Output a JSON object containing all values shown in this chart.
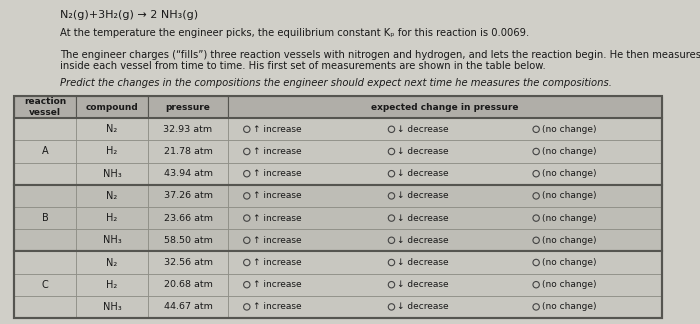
{
  "title_line": "N₂(g)+3H₂(g) → 2 NH₃(g)",
  "para1": "At the temperature the engineer picks, the equilibrium constant Kₚ for this reaction is 0.0069.",
  "para2": "The engineer charges (“fills”) three reaction vessels with nitrogen and hydrogen, and lets the reaction begin. He then measures the composition of the mixture inside each vessel from time to time. His first set of measurements are shown in the table below.",
  "para3": "Predict the changes in the compositions the engineer should expect next time he measures the compositions.",
  "col_headers": [
    "reaction\nvessel",
    "compound",
    "pressure",
    "expected change in pressure"
  ],
  "vessels": [
    "A",
    "B",
    "C"
  ],
  "compounds": [
    [
      "N₂",
      "H₂",
      "NH₃"
    ],
    [
      "N₂",
      "H₂",
      "NH₃"
    ],
    [
      "N₂",
      "H₂",
      "NH₃"
    ]
  ],
  "pressures": [
    [
      "32.93 atm",
      "21.78 atm",
      "43.94 atm"
    ],
    [
      "37.26 atm",
      "23.66 atm",
      "58.50 atm"
    ],
    [
      "32.56 atm",
      "20.68 atm",
      "44.67 atm"
    ]
  ],
  "options": [
    "↑ increase",
    "↓ decrease",
    "(no change)"
  ],
  "page_bg": "#d0cfc8",
  "table_header_bg": "#b0aea8",
  "cell_bg_A": "#c8c7c0",
  "cell_bg_B": "#bebdb6",
  "cell_bg_C": "#c8c7c0",
  "text_color": "#1a1a1a",
  "table_line_color": "#888880",
  "table_thick_color": "#555550"
}
